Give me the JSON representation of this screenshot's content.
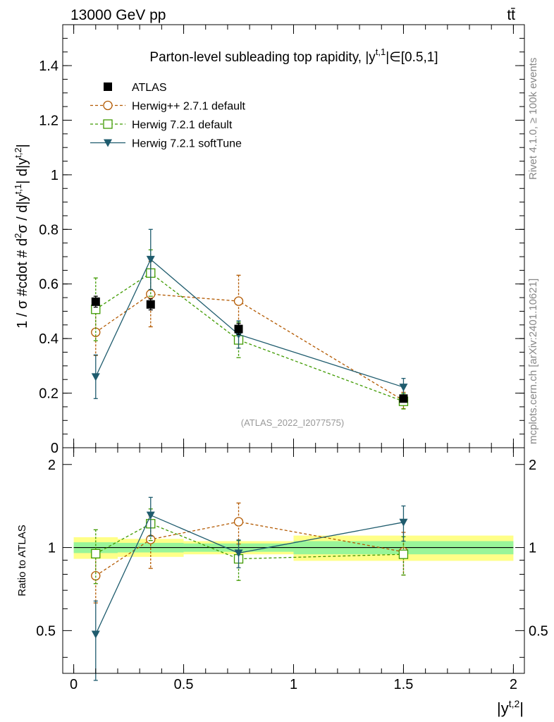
{
  "header": {
    "energy_label": "13000 GeV pp",
    "process_label": "tt̄"
  },
  "side_labels": {
    "rivet": "Rivet 4.1.0, ≥ 100k events",
    "mcplots": "mcplots.cern.ch [arXiv:2401.10621]"
  },
  "chart_data": [
    {
      "type": "line",
      "panel": "main",
      "title": "Parton-level subleading top rapidity, |y^{t,1}|∈[0.5,1]",
      "title_text": "Parton-level subleading top rapidity, |y",
      "title_sup": "t,1",
      "title_tail": "|∈[0.5,1]",
      "watermark": "(ATLAS_2022_I2077575)",
      "ylabel": "1 / σ #cdot # d²σ / d|y^{t,1}| d|y^{t,2}|",
      "ylabel_text": "1 / σ #cdot # d",
      "ylabel_sup1": "2",
      "ylabel_mid": "σ / d|y",
      "ylabel_sup2": "t,1",
      "ylabel_mid2": "| d|y",
      "ylabel_sup3": "t,2",
      "ylabel_tail": "|",
      "xlim": [
        -0.05,
        2.05
      ],
      "ylim": [
        0,
        1.55
      ],
      "yticks": [
        0,
        0.2,
        0.4,
        0.6,
        0.8,
        1,
        1.2,
        1.4
      ],
      "ytick_labels": [
        "0",
        "0.2",
        "0.4",
        "0.6",
        "0.8",
        "1",
        "1.2",
        "1.4"
      ],
      "legend": [
        "ATLAS",
        "Herwig++ 2.7.1 default",
        "Herwig 7.2.1 default",
        "Herwig 7.2.1 softTune"
      ],
      "series": [
        {
          "name": "ATLAS",
          "color": "#000000",
          "marker": "square-filled",
          "dashed": false,
          "line": false,
          "x": [
            0.1,
            0.35,
            0.75,
            1.5
          ],
          "y": [
            0.535,
            0.525,
            0.435,
            0.18
          ],
          "err": [
            0.02,
            0.02,
            0.02,
            0.01
          ]
        },
        {
          "name": "Herwig++ 2.7.1 default",
          "color": "#b35900",
          "marker": "circle-open",
          "dashed": true,
          "line": true,
          "x": [
            0.1,
            0.35,
            0.75,
            1.5
          ],
          "y": [
            0.423,
            0.563,
            0.537,
            0.173
          ],
          "err": [
            0.085,
            0.12,
            0.095,
            0.03
          ]
        },
        {
          "name": "Herwig 7.2.1 default",
          "color": "#3f9a00",
          "marker": "square-open",
          "dashed": true,
          "line": true,
          "x": [
            0.1,
            0.35,
            0.75,
            1.5
          ],
          "y": [
            0.507,
            0.64,
            0.395,
            0.17
          ],
          "err": [
            0.115,
            0.085,
            0.065,
            0.028
          ]
        },
        {
          "name": "Herwig 7.2.1 softTune",
          "color": "#1f5c6e",
          "marker": "triangle-down-filled",
          "dashed": false,
          "line": true,
          "x": [
            0.1,
            0.35,
            0.75,
            1.5
          ],
          "y": [
            0.26,
            0.69,
            0.415,
            0.222
          ],
          "err": [
            0.08,
            0.11,
            0.05,
            0.032
          ]
        }
      ]
    },
    {
      "type": "line",
      "panel": "ratio",
      "ylabel": "Ratio to ATLAS",
      "xlabel": "|y^{t,2}|",
      "xlabel_text": "|y",
      "xlabel_sup": "t,2",
      "xlabel_tail": "|",
      "xlim": [
        -0.05,
        2.05
      ],
      "ylim": [
        0.35,
        2.3
      ],
      "xticks": [
        0,
        0.5,
        1,
        1.5,
        2
      ],
      "xtick_labels": [
        "0",
        "0.5",
        "1",
        "1.5",
        "2"
      ],
      "yticks": [
        0.5,
        1,
        2
      ],
      "ytick_labels": [
        "0.5",
        "1",
        "2"
      ],
      "bands": [
        {
          "x0": 0.0,
          "x1": 0.2,
          "green": [
            0.955,
            1.045
          ],
          "yellow": [
            0.91,
            1.09
          ]
        },
        {
          "x0": 0.2,
          "x1": 0.5,
          "green": [
            0.96,
            1.04
          ],
          "yellow": [
            0.925,
            1.075
          ]
        },
        {
          "x0": 0.5,
          "x1": 1.0,
          "green": [
            0.965,
            1.035
          ],
          "yellow": [
            0.945,
            1.055
          ]
        },
        {
          "x0": 1.0,
          "x1": 2.0,
          "green": [
            0.945,
            1.055
          ],
          "yellow": [
            0.895,
            1.105
          ]
        }
      ],
      "series": [
        {
          "name": "Herwig++ 2.7.1 default",
          "color": "#b35900",
          "marker": "circle-open",
          "dashed": true,
          "line": true,
          "x": [
            0.1,
            0.35,
            0.75,
            1.5
          ],
          "y": [
            0.79,
            1.07,
            1.24,
            0.965
          ],
          "err": [
            0.16,
            0.23,
            0.21,
            0.17
          ]
        },
        {
          "name": "Herwig 7.2.1 default",
          "color": "#3f9a00",
          "marker": "square-open",
          "dashed": true,
          "line": true,
          "x": [
            0.1,
            0.35,
            0.75,
            1.5
          ],
          "y": [
            0.95,
            1.22,
            0.91,
            0.945
          ],
          "err": [
            0.21,
            0.16,
            0.15,
            0.15
          ]
        },
        {
          "name": "Herwig 7.2.1 softTune",
          "color": "#1f5c6e",
          "marker": "triangle-down-filled",
          "dashed": false,
          "line": true,
          "x": [
            0.1,
            0.35,
            0.75,
            1.5
          ],
          "y": [
            0.485,
            1.31,
            0.955,
            1.235
          ],
          "err": [
            0.155,
            0.21,
            0.11,
            0.18
          ]
        }
      ]
    }
  ]
}
